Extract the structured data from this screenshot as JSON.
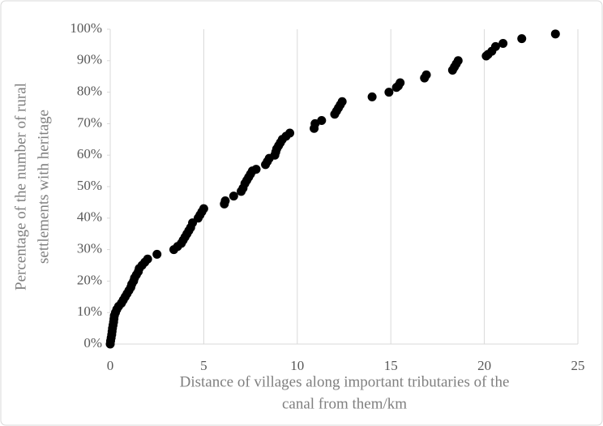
{
  "chart_data": {
    "type": "scatter",
    "xlabel": [
      "Distance of villages along important tributaries of the",
      "canal from them/km"
    ],
    "ylabel": [
      "Percentage of the number of rural",
      "settlements with heritage"
    ],
    "color": "#000000",
    "xlim": [
      0,
      25
    ],
    "xticks": [
      0,
      5,
      10,
      15,
      20,
      25
    ],
    "ylim": [
      0,
      100
    ],
    "yticks": [
      {
        "value": 0,
        "label": "0%"
      },
      {
        "value": 10,
        "label": "10%"
      },
      {
        "value": 20,
        "label": "20%"
      },
      {
        "value": 30,
        "label": "30%"
      },
      {
        "value": 40,
        "label": "40%"
      },
      {
        "value": 50,
        "label": "50%"
      },
      {
        "value": 60,
        "label": "60%"
      },
      {
        "value": 70,
        "label": "70%"
      },
      {
        "value": 80,
        "label": "80%"
      },
      {
        "value": 90,
        "label": "90%"
      },
      {
        "value": 100,
        "label": "100%"
      }
    ],
    "xgrid": true,
    "x": [
      0,
      0.02,
      0.05,
      0.08,
      0.1,
      0.12,
      0.15,
      0.18,
      0.2,
      0.22,
      0.28,
      0.35,
      0.45,
      0.6,
      0.7,
      0.8,
      0.9,
      1.0,
      1.1,
      1.15,
      1.25,
      1.3,
      1.4,
      1.5,
      1.55,
      1.7,
      1.85,
      2.0,
      2.5,
      3.4,
      3.6,
      3.8,
      3.9,
      4.0,
      4.1,
      4.2,
      4.3,
      4.4,
      4.7,
      4.8,
      4.9,
      5.0,
      6.1,
      6.15,
      6.6,
      7.0,
      7.1,
      7.2,
      7.3,
      7.4,
      7.5,
      7.6,
      7.8,
      8.3,
      8.4,
      8.5,
      8.8,
      8.85,
      8.9,
      9.0,
      9.1,
      9.2,
      9.4,
      9.6,
      10.9,
      10.95,
      11.3,
      12.0,
      12.1,
      12.2,
      12.3,
      12.4,
      14.0,
      14.9,
      15.3,
      15.4,
      15.5,
      16.8,
      16.9,
      18.3,
      18.4,
      18.5,
      18.6,
      20.1,
      20.2,
      20.4,
      20.6,
      21.0,
      22.0,
      23.8
    ],
    "values": [
      0,
      1,
      2,
      3,
      4,
      5,
      6,
      7,
      8,
      9,
      10,
      11,
      12,
      13,
      14,
      15,
      16,
      17,
      18,
      19,
      20,
      21,
      22,
      23,
      24,
      25,
      26,
      27,
      28.5,
      30,
      31,
      32,
      33,
      34,
      35,
      36,
      37,
      38.5,
      40,
      41,
      42,
      43,
      44.5,
      45.5,
      47,
      48.5,
      49.5,
      51,
      52,
      53,
      54,
      55,
      55.5,
      57,
      58,
      59,
      60,
      61,
      62,
      63,
      64,
      65,
      66,
      67,
      68.5,
      70,
      71,
      73,
      74,
      75,
      76,
      77,
      78.5,
      80,
      81.5,
      82,
      83,
      84.5,
      85.5,
      87,
      88,
      89,
      90,
      91.5,
      92,
      93,
      94.5,
      95.5,
      97,
      98.5
    ]
  }
}
